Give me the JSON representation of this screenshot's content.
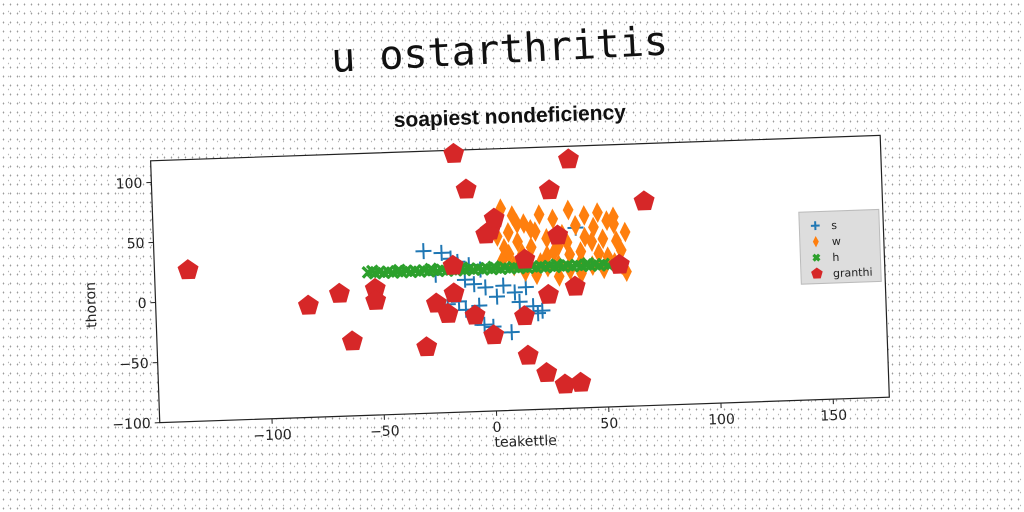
{
  "page": {
    "heading": "u ostarthritis"
  },
  "chart_data": {
    "type": "scatter",
    "title": "soapiest nondeficiency",
    "xlabel": "teakettle",
    "ylabel": "thoron",
    "xlim": [
      -150,
      175
    ],
    "ylim": [
      -100,
      118
    ],
    "xticks": [
      -100,
      -50,
      0,
      50,
      100,
      150
    ],
    "yticks": [
      -100,
      -50,
      0,
      50,
      100
    ],
    "x_tick_labels": [
      "−100",
      "−50",
      "0",
      "50",
      "100",
      "150"
    ],
    "y_tick_labels": [
      "−100",
      "−50",
      "0",
      "50",
      "100"
    ],
    "grid": false,
    "legend_position": "right",
    "series": [
      {
        "name": "s",
        "marker": "plus",
        "color": "#1f77b4",
        "points": [
          [
            -30,
            35
          ],
          [
            -22,
            33
          ],
          [
            -18,
            28
          ],
          [
            -15,
            25
          ],
          [
            -10,
            22
          ],
          [
            -5,
            18
          ],
          [
            -25,
            15
          ],
          [
            -12,
            10
          ],
          [
            -8,
            6
          ],
          [
            -3,
            3
          ],
          [
            5,
            4
          ],
          [
            10,
            -2
          ],
          [
            15,
            2
          ],
          [
            -20,
            -10
          ],
          [
            -12,
            -15
          ],
          [
            -8,
            -22
          ],
          [
            -4,
            -28
          ],
          [
            0,
            -30
          ],
          [
            8,
            -35
          ],
          [
            20,
            -20
          ],
          [
            -15,
            -8
          ],
          [
            -6,
            -12
          ],
          [
            2,
            -5
          ],
          [
            12,
            -10
          ],
          [
            18,
            -14
          ],
          [
            22,
            -18
          ],
          [
            38,
            50
          ]
        ]
      },
      {
        "name": "w",
        "marker": "thin_diamond",
        "color": "#ff7f0e",
        "points": [
          [
            5,
            68
          ],
          [
            10,
            62
          ],
          [
            15,
            55
          ],
          [
            20,
            48
          ],
          [
            25,
            42
          ],
          [
            30,
            35
          ],
          [
            35,
            28
          ],
          [
            40,
            22
          ],
          [
            45,
            18
          ],
          [
            50,
            15
          ],
          [
            55,
            20
          ],
          [
            58,
            30
          ],
          [
            60,
            45
          ],
          [
            55,
            58
          ],
          [
            48,
            62
          ],
          [
            42,
            60
          ],
          [
            35,
            65
          ],
          [
            28,
            58
          ],
          [
            22,
            62
          ],
          [
            18,
            50
          ],
          [
            12,
            40
          ],
          [
            8,
            30
          ],
          [
            5,
            25
          ],
          [
            10,
            20
          ],
          [
            15,
            15
          ],
          [
            20,
            12
          ],
          [
            25,
            18
          ],
          [
            30,
            10
          ],
          [
            35,
            15
          ],
          [
            40,
            30
          ],
          [
            45,
            38
          ],
          [
            50,
            40
          ],
          [
            55,
            52
          ],
          [
            8,
            48
          ],
          [
            12,
            55
          ],
          [
            18,
            35
          ],
          [
            25,
            28
          ],
          [
            32,
            45
          ],
          [
            38,
            52
          ],
          [
            42,
            42
          ],
          [
            48,
            28
          ],
          [
            52,
            25
          ],
          [
            58,
            18
          ],
          [
            60,
            12
          ],
          [
            3,
            45
          ],
          [
            6,
            35
          ],
          [
            14,
            30
          ],
          [
            22,
            22
          ],
          [
            28,
            30
          ],
          [
            34,
            38
          ],
          [
            40,
            12
          ],
          [
            46,
            50
          ],
          [
            52,
            55
          ],
          [
            56,
            38
          ],
          [
            30,
            20
          ]
        ]
      },
      {
        "name": "h",
        "marker": "x",
        "color": "#2ca02c",
        "points": [
          [
            -55,
            19
          ],
          [
            -52,
            18
          ],
          [
            -50,
            19
          ],
          [
            -48,
            18
          ],
          [
            -46,
            19
          ],
          [
            -44,
            18
          ],
          [
            -42,
            19
          ],
          [
            -40,
            18
          ],
          [
            -38,
            19
          ],
          [
            -36,
            18
          ],
          [
            -34,
            19
          ],
          [
            -32,
            18
          ],
          [
            -30,
            19
          ],
          [
            -28,
            18
          ],
          [
            -26,
            19
          ],
          [
            -24,
            18
          ],
          [
            -22,
            19
          ],
          [
            -20,
            18
          ],
          [
            -18,
            19
          ],
          [
            -16,
            18
          ],
          [
            -14,
            19
          ],
          [
            -12,
            18
          ],
          [
            -10,
            19
          ],
          [
            -8,
            18
          ],
          [
            -6,
            19
          ],
          [
            -4,
            18
          ],
          [
            -2,
            19
          ],
          [
            0,
            18
          ],
          [
            2,
            19
          ],
          [
            4,
            18
          ],
          [
            6,
            19
          ],
          [
            8,
            18
          ],
          [
            10,
            19
          ],
          [
            12,
            18
          ],
          [
            14,
            19
          ],
          [
            16,
            18
          ],
          [
            18,
            19
          ],
          [
            20,
            18
          ],
          [
            22,
            19
          ],
          [
            24,
            18
          ],
          [
            26,
            19
          ],
          [
            28,
            18
          ],
          [
            30,
            19
          ],
          [
            32,
            18
          ],
          [
            34,
            19
          ],
          [
            36,
            18
          ],
          [
            38,
            19
          ],
          [
            40,
            18
          ],
          [
            42,
            19
          ],
          [
            44,
            18
          ],
          [
            46,
            19
          ],
          [
            48,
            18
          ],
          [
            50,
            19
          ],
          [
            52,
            18
          ],
          [
            -53,
            20
          ],
          [
            -41,
            20
          ],
          [
            -27,
            20
          ],
          [
            -13,
            20
          ],
          [
            1,
            20
          ],
          [
            15,
            20
          ],
          [
            29,
            20
          ],
          [
            43,
            20
          ]
        ]
      },
      {
        "name": "granthi",
        "marker": "pentagon",
        "color": "#d62728",
        "points": [
          [
            -135,
            26
          ],
          [
            -82,
            -7
          ],
          [
            -68,
            2
          ],
          [
            -52,
            5
          ],
          [
            -52,
            -5
          ],
          [
            -63,
            -38
          ],
          [
            -30,
            -45
          ],
          [
            -25,
            -9
          ],
          [
            -20,
            -18
          ],
          [
            -17,
            -1
          ],
          [
            -17,
            22
          ],
          [
            -15,
            115
          ],
          [
            -10,
            85
          ],
          [
            -8,
            -20
          ],
          [
            -2,
            47
          ],
          [
            0,
            50
          ],
          [
            0,
            -37
          ],
          [
            2,
            60
          ],
          [
            15,
            -55
          ],
          [
            14,
            -22
          ],
          [
            15,
            25
          ],
          [
            23,
            -70
          ],
          [
            25,
            -5
          ],
          [
            27,
            82
          ],
          [
            30,
            44
          ],
          [
            31,
            -80
          ],
          [
            36,
            107
          ],
          [
            38,
            -79
          ],
          [
            37,
            1
          ],
          [
            57,
            18
          ],
          [
            69,
            70
          ]
        ]
      }
    ]
  }
}
